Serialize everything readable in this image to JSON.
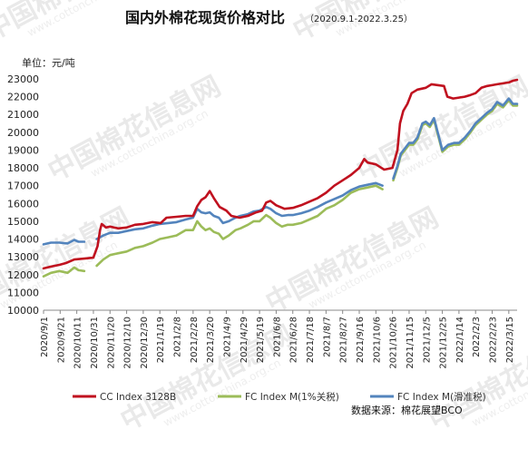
{
  "chart_data": {
    "type": "line",
    "title": "国内外棉花现货价格对比",
    "subtitle": "（2020.9.1-2022.3.25）",
    "ylabel": "单位：元/吨",
    "xlabel": "",
    "ylim": [
      10000,
      23000
    ],
    "yticks": [
      "10000",
      "11000",
      "12000",
      "13000",
      "14000",
      "15000",
      "16000",
      "17000",
      "18000",
      "19000",
      "20000",
      "21000",
      "22000",
      "23000"
    ],
    "xticks": [
      "2020/9/1",
      "2020/9/21",
      "2020/10/11",
      "2020/10/31",
      "2020/11/20",
      "2020/12/10",
      "2020/12/30",
      "2021/1/19",
      "2021/2/8",
      "2021/2/28",
      "2021/3/20",
      "2021/4/9",
      "2021/4/29",
      "2021/5/19",
      "2021/6/8",
      "2021/6/28",
      "2021/7/18",
      "2021/8/7",
      "2021/8/27",
      "2021/9/16",
      "2021/10/6",
      "2021/10/26",
      "2021/11/15",
      "2021/12/5",
      "2021/12/25",
      "2022/1/14",
      "2022/2/3",
      "2022/2/23",
      "2022/3/15"
    ],
    "x_range": [
      "2020/9/1",
      "2022/3/25"
    ],
    "legend_position": "bottom",
    "grid": false,
    "source": "数据来源：棉花展望BCO",
    "series": [
      {
        "name": "CC Index 3128B",
        "color": "#c0111f",
        "points": [
          [
            "2020-09-01",
            12350
          ],
          [
            "2020-09-10",
            12450
          ],
          [
            "2020-09-20",
            12550
          ],
          [
            "2020-09-28",
            12650
          ],
          [
            "2020-10-08",
            12850
          ],
          [
            "2020-10-20",
            12900
          ],
          [
            "2020-10-31",
            12950
          ],
          [
            "2020-11-05",
            13600
          ],
          [
            "2020-11-08",
            14500
          ],
          [
            "2020-11-10",
            14850
          ],
          [
            "2020-11-15",
            14650
          ],
          [
            "2020-11-20",
            14700
          ],
          [
            "2020-11-30",
            14600
          ],
          [
            "2020-12-10",
            14650
          ],
          [
            "2020-12-20",
            14800
          ],
          [
            "2020-12-30",
            14850
          ],
          [
            "2021-01-10",
            14950
          ],
          [
            "2021-01-20",
            14900
          ],
          [
            "2021-01-27",
            15200
          ],
          [
            "2021-02-08",
            15250
          ],
          [
            "2021-02-19",
            15300
          ],
          [
            "2021-02-28",
            15300
          ],
          [
            "2021-03-05",
            15850
          ],
          [
            "2021-03-10",
            16200
          ],
          [
            "2021-03-15",
            16350
          ],
          [
            "2021-03-20",
            16700
          ],
          [
            "2021-03-25",
            16300
          ],
          [
            "2021-04-01",
            15800
          ],
          [
            "2021-04-09",
            15600
          ],
          [
            "2021-04-15",
            15300
          ],
          [
            "2021-04-25",
            15200
          ],
          [
            "2021-05-05",
            15300
          ],
          [
            "2021-05-15",
            15500
          ],
          [
            "2021-05-22",
            15600
          ],
          [
            "2021-05-27",
            16050
          ],
          [
            "2021-06-01",
            16150
          ],
          [
            "2021-06-08",
            15900
          ],
          [
            "2021-06-18",
            15700
          ],
          [
            "2021-06-28",
            15750
          ],
          [
            "2021-07-08",
            15900
          ],
          [
            "2021-07-18",
            16100
          ],
          [
            "2021-07-28",
            16300
          ],
          [
            "2021-08-07",
            16600
          ],
          [
            "2021-08-17",
            17000
          ],
          [
            "2021-08-27",
            17300
          ],
          [
            "2021-09-06",
            17600
          ],
          [
            "2021-09-16",
            18000
          ],
          [
            "2021-09-22",
            18500
          ],
          [
            "2021-09-26",
            18300
          ],
          [
            "2021-10-06",
            18200
          ],
          [
            "2021-10-16",
            17900
          ],
          [
            "2021-10-26",
            18000
          ],
          [
            "2021-11-01",
            19000
          ],
          [
            "2021-11-04",
            20500
          ],
          [
            "2021-11-08",
            21200
          ],
          [
            "2021-11-13",
            21600
          ],
          [
            "2021-11-18",
            22200
          ],
          [
            "2021-11-25",
            22400
          ],
          [
            "2021-12-05",
            22500
          ],
          [
            "2021-12-12",
            22700
          ],
          [
            "2021-12-20",
            22650
          ],
          [
            "2021-12-27",
            22600
          ],
          [
            "2021-12-31",
            22000
          ],
          [
            "2022-01-07",
            21900
          ],
          [
            "2022-01-14",
            21950
          ],
          [
            "2022-01-21",
            22000
          ],
          [
            "2022-01-28",
            22100
          ],
          [
            "2022-02-03",
            22200
          ],
          [
            "2022-02-10",
            22500
          ],
          [
            "2022-02-17",
            22600
          ],
          [
            "2022-02-23",
            22650
          ],
          [
            "2022-03-01",
            22700
          ],
          [
            "2022-03-08",
            22750
          ],
          [
            "2022-03-15",
            22800
          ],
          [
            "2022-03-20",
            22900
          ],
          [
            "2022-03-25",
            22950
          ]
        ]
      },
      {
        "name": "FC Index M(1%关税)",
        "color": "#9cbc59",
        "points": [
          [
            "2020-09-01",
            11900
          ],
          [
            "2020-09-10",
            12100
          ],
          [
            "2020-09-20",
            12200
          ],
          [
            "2020-09-30",
            12100
          ],
          [
            "2020-10-08",
            12400
          ],
          [
            "2020-10-13",
            12250
          ],
          [
            "2020-10-20",
            12200
          ],
          [
            "2020-10-31",
            null
          ],
          [
            "2020-11-04",
            12500
          ],
          [
            "2020-11-12",
            12850
          ],
          [
            "2020-11-20",
            13100
          ],
          [
            "2020-11-30",
            13200
          ],
          [
            "2020-12-10",
            13300
          ],
          [
            "2020-12-20",
            13500
          ],
          [
            "2020-12-30",
            13600
          ],
          [
            "2021-01-10",
            13800
          ],
          [
            "2021-01-19",
            14000
          ],
          [
            "2021-01-29",
            14100
          ],
          [
            "2021-02-08",
            14200
          ],
          [
            "2021-02-19",
            14500
          ],
          [
            "2021-02-28",
            14500
          ],
          [
            "2021-03-05",
            15000
          ],
          [
            "2021-03-10",
            14700
          ],
          [
            "2021-03-15",
            14500
          ],
          [
            "2021-03-20",
            14600
          ],
          [
            "2021-03-25",
            14400
          ],
          [
            "2021-03-31",
            14300
          ],
          [
            "2021-04-05",
            14000
          ],
          [
            "2021-04-12",
            14200
          ],
          [
            "2021-04-20",
            14500
          ],
          [
            "2021-04-26",
            14600
          ],
          [
            "2021-05-05",
            14800
          ],
          [
            "2021-05-12",
            15000
          ],
          [
            "2021-05-19",
            15000
          ],
          [
            "2021-05-27",
            15350
          ],
          [
            "2021-06-01",
            15200
          ],
          [
            "2021-06-08",
            14900
          ],
          [
            "2021-06-15",
            14700
          ],
          [
            "2021-06-22",
            14800
          ],
          [
            "2021-06-28",
            14800
          ],
          [
            "2021-07-08",
            14900
          ],
          [
            "2021-07-18",
            15100
          ],
          [
            "2021-07-28",
            15300
          ],
          [
            "2021-08-07",
            15700
          ],
          [
            "2021-08-17",
            15900
          ],
          [
            "2021-08-27",
            16200
          ],
          [
            "2021-09-06",
            16600
          ],
          [
            "2021-09-16",
            16800
          ],
          [
            "2021-09-26",
            16900
          ],
          [
            "2021-10-06",
            17000
          ],
          [
            "2021-10-14",
            16800
          ],
          [
            "2021-10-20",
            null
          ],
          [
            "2021-10-27",
            17300
          ],
          [
            "2021-11-01",
            18000
          ],
          [
            "2021-11-05",
            18700
          ],
          [
            "2021-11-10",
            19000
          ],
          [
            "2021-11-15",
            19300
          ],
          [
            "2021-11-20",
            19300
          ],
          [
            "2021-11-25",
            19600
          ],
          [
            "2021-12-01",
            20400
          ],
          [
            "2021-12-05",
            20500
          ],
          [
            "2021-12-10",
            20300
          ],
          [
            "2021-12-15",
            20700
          ],
          [
            "2021-12-20",
            19800
          ],
          [
            "2021-12-25",
            18900
          ],
          [
            "2022-01-01",
            19200
          ],
          [
            "2022-01-08",
            19300
          ],
          [
            "2022-01-14",
            19300
          ],
          [
            "2022-01-21",
            19600
          ],
          [
            "2022-01-28",
            20000
          ],
          [
            "2022-02-03",
            20400
          ],
          [
            "2022-02-10",
            20700
          ],
          [
            "2022-02-17",
            21000
          ],
          [
            "2022-02-23",
            21200
          ],
          [
            "2022-03-01",
            21600
          ],
          [
            "2022-03-08",
            21400
          ],
          [
            "2022-03-15",
            21800
          ],
          [
            "2022-03-20",
            21500
          ],
          [
            "2022-03-25",
            21500
          ]
        ]
      },
      {
        "name": "FC Index M(滑准税)",
        "color": "#5384bd",
        "points": [
          [
            "2020-09-01",
            13700
          ],
          [
            "2020-09-10",
            13800
          ],
          [
            "2020-09-20",
            13800
          ],
          [
            "2020-09-30",
            13750
          ],
          [
            "2020-10-08",
            13950
          ],
          [
            "2020-10-13",
            13850
          ],
          [
            "2020-10-20",
            13850
          ],
          [
            "2020-10-31",
            null
          ],
          [
            "2020-11-04",
            14000
          ],
          [
            "2020-11-12",
            14200
          ],
          [
            "2020-11-20",
            14350
          ],
          [
            "2020-11-30",
            14350
          ],
          [
            "2020-12-10",
            14450
          ],
          [
            "2020-12-20",
            14550
          ],
          [
            "2020-12-30",
            14600
          ],
          [
            "2021-01-10",
            14750
          ],
          [
            "2021-01-19",
            14850
          ],
          [
            "2021-01-29",
            14900
          ],
          [
            "2021-02-08",
            14950
          ],
          [
            "2021-02-19",
            15100
          ],
          [
            "2021-02-28",
            15200
          ],
          [
            "2021-03-05",
            15700
          ],
          [
            "2021-03-10",
            15500
          ],
          [
            "2021-03-15",
            15450
          ],
          [
            "2021-03-20",
            15500
          ],
          [
            "2021-03-25",
            15300
          ],
          [
            "2021-03-31",
            15200
          ],
          [
            "2021-04-05",
            14900
          ],
          [
            "2021-04-12",
            15000
          ],
          [
            "2021-04-20",
            15200
          ],
          [
            "2021-04-26",
            15300
          ],
          [
            "2021-05-05",
            15400
          ],
          [
            "2021-05-12",
            15550
          ],
          [
            "2021-05-19",
            15600
          ],
          [
            "2021-05-27",
            15800
          ],
          [
            "2021-06-01",
            15700
          ],
          [
            "2021-06-08",
            15450
          ],
          [
            "2021-06-15",
            15300
          ],
          [
            "2021-06-22",
            15350
          ],
          [
            "2021-06-28",
            15350
          ],
          [
            "2021-07-08",
            15450
          ],
          [
            "2021-07-18",
            15600
          ],
          [
            "2021-07-28",
            15800
          ],
          [
            "2021-08-07",
            16050
          ],
          [
            "2021-08-17",
            16250
          ],
          [
            "2021-08-27",
            16450
          ],
          [
            "2021-09-06",
            16750
          ],
          [
            "2021-09-16",
            16950
          ],
          [
            "2021-09-26",
            17050
          ],
          [
            "2021-10-06",
            17150
          ],
          [
            "2021-10-14",
            17000
          ],
          [
            "2021-10-20",
            null
          ],
          [
            "2021-10-27",
            17400
          ],
          [
            "2021-11-01",
            18100
          ],
          [
            "2021-11-05",
            18800
          ],
          [
            "2021-11-10",
            19100
          ],
          [
            "2021-11-15",
            19400
          ],
          [
            "2021-11-20",
            19400
          ],
          [
            "2021-11-25",
            19700
          ],
          [
            "2021-12-01",
            20500
          ],
          [
            "2021-12-05",
            20600
          ],
          [
            "2021-12-10",
            20400
          ],
          [
            "2021-12-15",
            20800
          ],
          [
            "2021-12-20",
            19900
          ],
          [
            "2021-12-25",
            19000
          ],
          [
            "2022-01-01",
            19300
          ],
          [
            "2022-01-08",
            19400
          ],
          [
            "2022-01-14",
            19400
          ],
          [
            "2022-01-21",
            19700
          ],
          [
            "2022-01-28",
            20100
          ],
          [
            "2022-02-03",
            20500
          ],
          [
            "2022-02-10",
            20800
          ],
          [
            "2022-02-17",
            21100
          ],
          [
            "2022-02-23",
            21300
          ],
          [
            "2022-03-01",
            21700
          ],
          [
            "2022-03-08",
            21500
          ],
          [
            "2022-03-15",
            21900
          ],
          [
            "2022-03-20",
            21600
          ],
          [
            "2022-03-25",
            21600
          ]
        ]
      }
    ]
  },
  "watermark": {
    "text": "中国棉花信息网",
    "url": "www.cottonchina.org.cn"
  }
}
